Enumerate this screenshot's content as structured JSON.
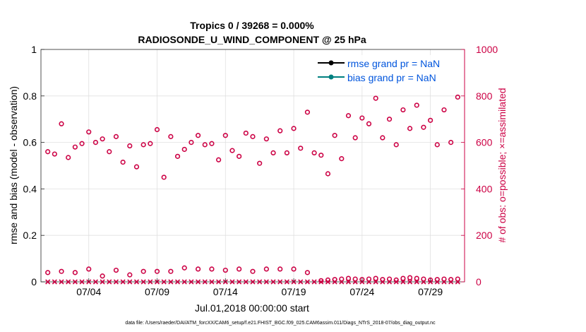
{
  "chart_data": {
    "type": "scatter",
    "title_line1": "Tropics 0 / 39268 = 0.000%",
    "title_line2": "RADIOSONDE_U_WIND_COMPONENT @ 25 hPa",
    "xlabel": "Jul.01,2018 00:00:00 start",
    "ylabel_left": "rmse and bias (model - observation)",
    "ylabel_right": "# of obs: o=possible; ×=assimilated",
    "footer": "data file: /Users/raeder/DAI/ATM_forcXX/CAM6_setup/f.e21.FHIST_BGC.f09_025.CAM6assim.011/Diags_NTrS_2018-07/obs_diag_output.nc",
    "xlim": [
      0.5,
      31.5
    ],
    "x_ticks": [
      {
        "value": 4,
        "label": "07/04"
      },
      {
        "value": 9,
        "label": "07/09"
      },
      {
        "value": 14,
        "label": "07/14"
      },
      {
        "value": 19,
        "label": "07/19"
      },
      {
        "value": 24,
        "label": "07/24"
      },
      {
        "value": 29,
        "label": "07/29"
      }
    ],
    "ylim_left": [
      0,
      1
    ],
    "yticks_left": [
      "0",
      "0.2",
      "0.4",
      "0.6",
      "0.8",
      "1"
    ],
    "ylim_right": [
      0,
      1000
    ],
    "yticks_right": [
      "0",
      "200",
      "400",
      "600",
      "800",
      "1000"
    ],
    "legend": [
      {
        "label": "rmse grand pr = NaN",
        "color": "#000000"
      },
      {
        "label": "bias grand pr = NaN",
        "color": "#008080"
      }
    ],
    "colors": {
      "obs": "#cc0044",
      "axis_right": "#cc0044",
      "legend_text": "#0000ff",
      "grid": "#e0e0e0"
    },
    "series": [
      {
        "name": "possible obs (upper)",
        "marker": "o",
        "x": [
          1.0,
          1.5,
          2.0,
          2.5,
          3.0,
          3.5,
          4.0,
          4.5,
          5.0,
          5.5,
          6.0,
          6.5,
          7.0,
          7.5,
          8.0,
          8.5,
          9.0,
          9.5,
          10.0,
          10.5,
          11.0,
          11.5,
          12.0,
          12.5,
          13.0,
          13.5,
          14.0,
          14.5,
          15.0,
          15.5,
          16.0,
          16.5,
          17.0,
          17.5,
          18.0,
          18.5,
          19.0,
          19.5,
          20.0,
          20.5,
          21.0,
          21.5,
          22.0,
          22.5,
          23.0,
          23.5,
          24.0,
          24.5,
          25.0,
          25.5,
          26.0,
          26.5,
          27.0,
          27.5,
          28.0,
          28.5,
          29.0,
          29.5,
          30.0,
          30.5,
          31.0
        ],
        "values": [
          560,
          550,
          680,
          535,
          580,
          595,
          645,
          600,
          615,
          560,
          625,
          515,
          585,
          495,
          590,
          595,
          655,
          450,
          625,
          540,
          570,
          600,
          630,
          590,
          595,
          525,
          630,
          565,
          540,
          640,
          625,
          510,
          615,
          555,
          650,
          555,
          660,
          575,
          730,
          555,
          545,
          465,
          630,
          530,
          715,
          620,
          705,
          680,
          790,
          620,
          700,
          590,
          740,
          660,
          760,
          665,
          695,
          590,
          740,
          600,
          795
        ]
      },
      {
        "name": "possible obs (lower)",
        "marker": "o",
        "x": [
          1.0,
          2.0,
          3.0,
          4.0,
          5.0,
          6.0,
          7.0,
          8.0,
          9.0,
          10.0,
          11.0,
          12.0,
          13.0,
          14.0,
          15.0,
          16.0,
          17.0,
          18.0,
          19.0,
          20.0
        ],
        "values": [
          40,
          45,
          40,
          55,
          25,
          50,
          30,
          45,
          45,
          45,
          60,
          55,
          55,
          50,
          55,
          45,
          55,
          55,
          55,
          40
        ]
      },
      {
        "name": "possible obs (baseline)",
        "marker": "o",
        "x": [
          21.0,
          21.5,
          22.0,
          22.5,
          23.0,
          23.5,
          24.0,
          24.5,
          25.0,
          25.5,
          26.0,
          26.5,
          27.0,
          27.5,
          28.0,
          28.5,
          29.0,
          29.5,
          30.0,
          30.5,
          31.0
        ],
        "values": [
          5,
          8,
          10,
          12,
          15,
          12,
          10,
          12,
          15,
          10,
          12,
          8,
          15,
          18,
          15,
          12,
          8,
          10,
          12,
          10,
          12
        ]
      },
      {
        "name": "assimilated obs",
        "marker": "x",
        "x": [
          1.0,
          1.5,
          2.0,
          2.5,
          3.0,
          3.5,
          4.0,
          4.5,
          5.0,
          5.5,
          6.0,
          6.5,
          7.0,
          7.5,
          8.0,
          8.5,
          9.0,
          9.5,
          10.0,
          10.5,
          11.0,
          11.5,
          12.0,
          12.5,
          13.0,
          13.5,
          14.0,
          14.5,
          15.0,
          15.5,
          16.0,
          16.5,
          17.0,
          17.5,
          18.0,
          18.5,
          19.0,
          19.5,
          20.0,
          20.5,
          21.0,
          21.5,
          22.0,
          22.5,
          23.0,
          23.5,
          24.0,
          24.5,
          25.0,
          25.5,
          26.0,
          26.5,
          27.0,
          27.5,
          28.0,
          28.5,
          29.0,
          29.5,
          30.0,
          30.5,
          31.0
        ],
        "values": [
          0,
          0,
          0,
          0,
          0,
          0,
          0,
          0,
          0,
          0,
          0,
          0,
          0,
          0,
          0,
          0,
          0,
          0,
          0,
          0,
          0,
          0,
          0,
          0,
          0,
          0,
          0,
          0,
          0,
          0,
          0,
          0,
          0,
          0,
          0,
          0,
          0,
          0,
          0,
          0,
          0,
          0,
          0,
          0,
          0,
          0,
          0,
          0,
          0,
          0,
          0,
          0,
          0,
          0,
          0,
          0,
          0,
          0,
          0,
          0,
          0
        ]
      }
    ]
  }
}
